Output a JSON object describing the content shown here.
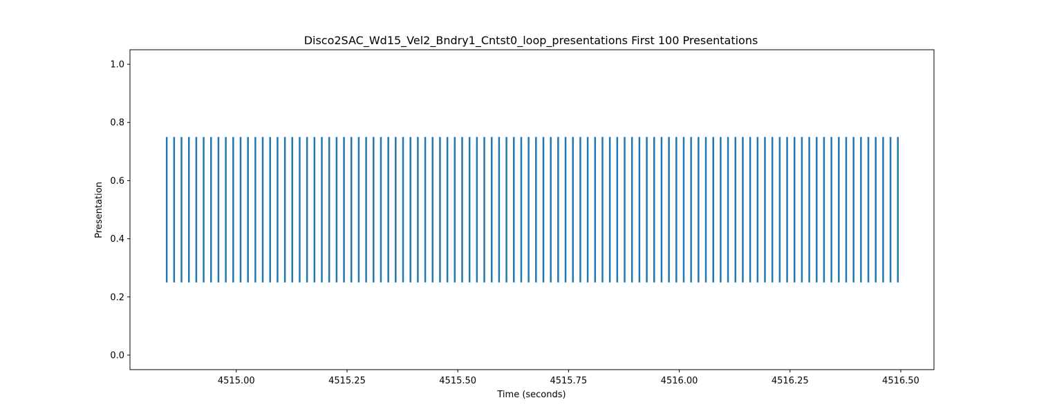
{
  "chart_data": {
    "type": "eventplot",
    "title": "Disco2SAC_Wd15_Vel2_Bndry1_Cntst0_loop_presentations First 100 Presentations",
    "xlabel": "Time (seconds)",
    "ylabel": "Presentation",
    "xlim": [
      4514.76,
      4516.575
    ],
    "ylim": [
      -0.05,
      1.05
    ],
    "x_ticks": [
      4515.0,
      4515.25,
      4515.5,
      4515.75,
      4516.0,
      4516.25,
      4516.5
    ],
    "x_tick_labels": [
      "4515.00",
      "4515.25",
      "4515.50",
      "4515.75",
      "4516.00",
      "4516.25",
      "4516.50"
    ],
    "y_ticks": [
      0.0,
      0.2,
      0.4,
      0.6,
      0.8,
      1.0
    ],
    "y_tick_labels": [
      "0.0",
      "0.2",
      "0.4",
      "0.6",
      "0.8",
      "1.0"
    ],
    "grid": false,
    "color": "#1f77b4",
    "series": [
      {
        "line_y_range": [
          0.25,
          0.75
        ],
        "event_times_range": [
          4514.843,
          4516.4935
        ],
        "event_count": 100
      }
    ]
  }
}
